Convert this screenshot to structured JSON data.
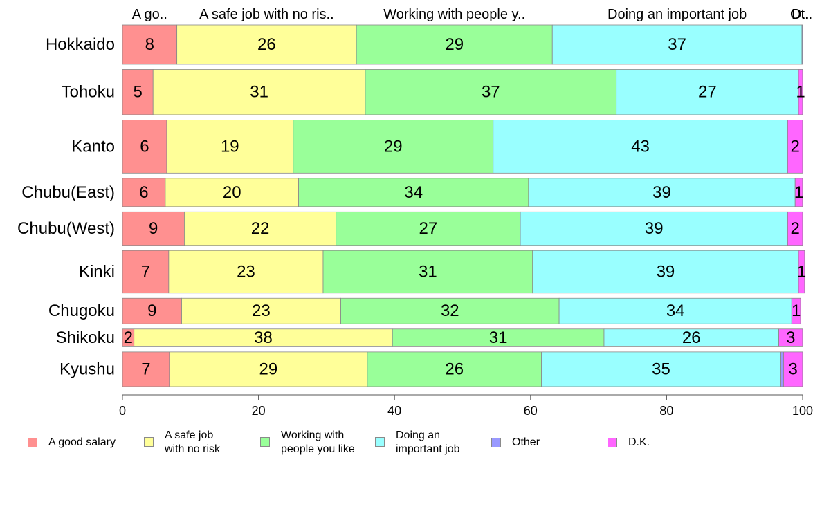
{
  "chart_data": {
    "type": "bar",
    "orientation": "horizontal",
    "stacked": true,
    "categories": [
      "Hokkaido",
      "Tohoku",
      "Kanto",
      "Chubu(East)",
      "Chubu(West)",
      "Kinki",
      "Chugoku",
      "Shikoku",
      "Kyushu"
    ],
    "series": [
      {
        "name": "A good salary",
        "color": "#ff9090",
        "values": [
          8,
          4.5,
          6.5,
          6.3,
          9.1,
          6.8,
          8.7,
          1.7,
          6.9
        ],
        "labels": [
          "8",
          "5",
          "6",
          "6",
          "9",
          "7",
          "9",
          "2",
          "7"
        ]
      },
      {
        "name": "A safe job with no risk",
        "color": "#ffff99",
        "values": [
          26.4,
          31.2,
          18.6,
          19.6,
          22.3,
          22.7,
          23.4,
          38,
          29.1
        ],
        "labels": [
          "26",
          "31",
          "19",
          "20",
          "22",
          "23",
          "23",
          "38",
          "29"
        ]
      },
      {
        "name": "Working with people you like",
        "color": "#99ff99",
        "values": [
          28.8,
          36.9,
          29.4,
          33.8,
          27.1,
          30.8,
          32.1,
          31.1,
          25.6
        ],
        "labels": [
          "29",
          "37",
          "29",
          "34",
          "27",
          "31",
          "32",
          "31",
          "26"
        ]
      },
      {
        "name": "Doing an important job",
        "color": "#99ffff",
        "values": [
          36.7,
          26.8,
          43.3,
          39.2,
          39.3,
          39.1,
          34.2,
          25.7,
          35.2
        ],
        "labels": [
          "37",
          "27",
          "43",
          "39",
          "39",
          "39",
          "34",
          "26",
          "35"
        ]
      },
      {
        "name": "Other",
        "color": "#9999ff",
        "values": [
          0.1,
          0,
          0,
          0,
          0,
          0,
          0,
          0,
          0.4
        ],
        "labels": [
          "",
          "",
          "",
          "",
          "",
          "",
          "",
          "",
          ""
        ]
      },
      {
        "name": "D.K.",
        "color": "#ff66ff",
        "values": [
          0,
          0.6,
          2.2,
          1.1,
          2.2,
          0.9,
          1.3,
          3.5,
          2.8
        ],
        "labels": [
          "",
          "1",
          "2",
          "1",
          "2",
          "1",
          "1",
          "3",
          "3"
        ]
      }
    ],
    "bar_weights": [
      1,
      1.15,
      1.35,
      0.72,
      0.85,
      1.08,
      0.65,
      0.45,
      0.88
    ],
    "top_labels": [
      "A go..",
      "A safe job with no ris..",
      "Working with people y..",
      "",
      "Doing an important job",
      "",
      "Ot..",
      "D.."
    ],
    "xlim": [
      0,
      100
    ],
    "xticks": [
      0,
      20,
      40,
      60,
      80,
      100
    ],
    "title": "",
    "xlabel": "",
    "ylabel": "",
    "grid": false,
    "legend_position": "bottom",
    "legend": [
      {
        "label": "A good salary",
        "color": "#ff9090"
      },
      {
        "label": "A safe job\nwith no risk",
        "color": "#ffff99"
      },
      {
        "label": "Working with\npeople you like",
        "color": "#99ff99"
      },
      {
        "label": "Doing an\nimportant job",
        "color": "#99ffff"
      },
      {
        "label": "Other",
        "color": "#9999ff"
      },
      {
        "label": "D.K.",
        "color": "#ff66ff"
      }
    ]
  }
}
